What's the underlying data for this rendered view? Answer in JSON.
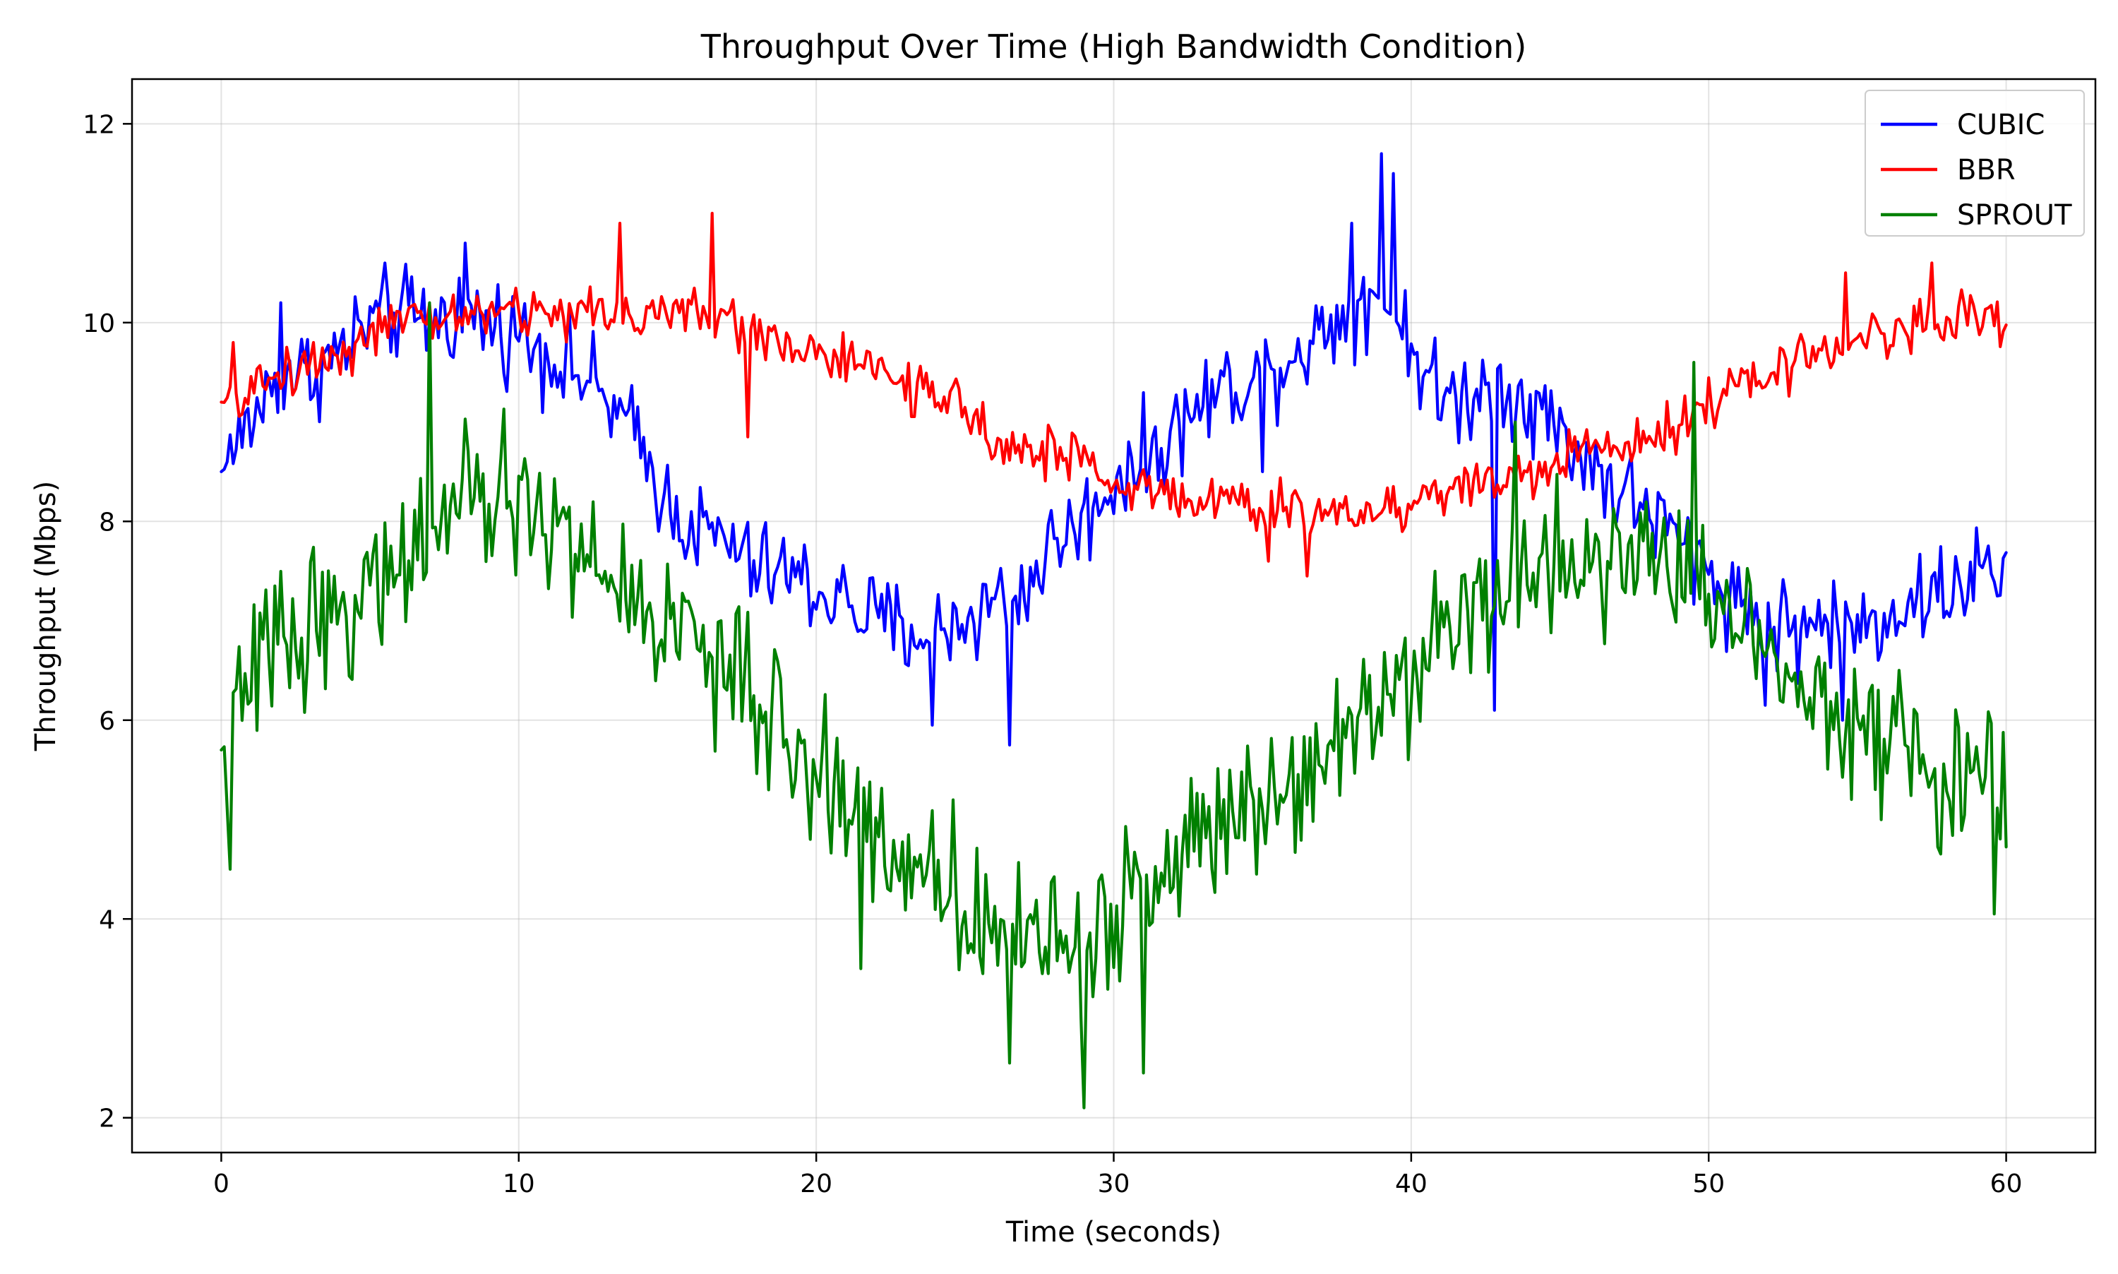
{
  "chart_data": {
    "type": "line",
    "title": "Throughput Over Time (High Bandwidth Condition)",
    "xlabel": "Time (seconds)",
    "ylabel": "Throughput (Mbps)",
    "xlim": [
      -3,
      63
    ],
    "ylim": [
      1.65,
      12.45
    ],
    "x_ticks": [
      0,
      10,
      20,
      30,
      40,
      50,
      60
    ],
    "y_ticks": [
      2,
      4,
      6,
      8,
      10,
      12
    ],
    "x_tick_labels": [
      "0",
      "10",
      "20",
      "30",
      "40",
      "50",
      "60"
    ],
    "y_tick_labels": [
      "2",
      "4",
      "6",
      "8",
      "10",
      "12"
    ],
    "grid": true,
    "legend": {
      "position": "top-right",
      "entries": [
        "CUBIC",
        "BBR",
        "SPROUT"
      ]
    },
    "sample_interval_s": 0.1,
    "series": [
      {
        "name": "CUBIC",
        "color": "#0000ff",
        "anchors": [
          [
            0,
            8.5
          ],
          [
            1,
            9.0
          ],
          [
            2,
            9.5
          ],
          [
            3,
            9.5
          ],
          [
            4,
            9.7
          ],
          [
            5,
            10.0
          ],
          [
            6,
            10.1
          ],
          [
            7,
            10.0
          ],
          [
            8,
            10.1
          ],
          [
            9,
            10.0
          ],
          [
            10,
            9.9
          ],
          [
            11,
            9.7
          ],
          [
            12,
            9.5
          ],
          [
            13,
            9.2
          ],
          [
            14,
            8.8
          ],
          [
            15,
            8.2
          ],
          [
            16,
            7.9
          ],
          [
            17,
            7.8
          ],
          [
            18,
            7.5
          ],
          [
            19,
            7.5
          ],
          [
            20,
            7.3
          ],
          [
            21,
            7.2
          ],
          [
            22,
            7.0
          ],
          [
            23,
            6.9
          ],
          [
            24,
            6.9
          ],
          [
            25,
            7.0
          ],
          [
            26,
            7.2
          ],
          [
            27,
            7.3
          ],
          [
            28,
            7.8
          ],
          [
            29,
            8.0
          ],
          [
            30,
            8.4
          ],
          [
            31,
            8.6
          ],
          [
            32,
            8.9
          ],
          [
            33,
            9.2
          ],
          [
            34,
            9.4
          ],
          [
            35,
            9.5
          ],
          [
            36,
            9.7
          ],
          [
            37,
            9.9
          ],
          [
            38,
            10.2
          ],
          [
            39,
            10.3
          ],
          [
            40,
            9.8
          ],
          [
            41,
            9.2
          ],
          [
            42,
            9.3
          ],
          [
            43,
            9.4
          ],
          [
            44,
            9.2
          ],
          [
            45,
            8.9
          ],
          [
            46,
            8.6
          ],
          [
            47,
            8.3
          ],
          [
            48,
            8.1
          ],
          [
            49,
            7.8
          ],
          [
            50,
            7.5
          ],
          [
            51,
            7.2
          ],
          [
            52,
            7.0
          ],
          [
            53,
            6.9
          ],
          [
            54,
            7.0
          ],
          [
            55,
            6.9
          ],
          [
            56,
            7.1
          ],
          [
            57,
            7.2
          ],
          [
            58,
            7.3
          ],
          [
            59,
            7.5
          ],
          [
            60,
            7.4
          ]
        ],
        "noise": 0.55,
        "spikes": [
          [
            39.0,
            11.7
          ],
          [
            39.4,
            11.5
          ],
          [
            38.0,
            11.0
          ],
          [
            8.2,
            10.8
          ],
          [
            5.5,
            10.6
          ],
          [
            42.8,
            6.1
          ],
          [
            35.0,
            8.5
          ],
          [
            30.5,
            8.8
          ],
          [
            26.5,
            5.75
          ],
          [
            23.9,
            5.95
          ],
          [
            2.0,
            10.2
          ],
          [
            51.9,
            6.15
          ],
          [
            54.5,
            6.0
          ],
          [
            0.2,
            8.6
          ]
        ]
      },
      {
        "name": "BBR",
        "color": "#ff0000",
        "anchors": [
          [
            0,
            9.2
          ],
          [
            1,
            9.3
          ],
          [
            2,
            9.5
          ],
          [
            3,
            9.6
          ],
          [
            4,
            9.7
          ],
          [
            5,
            9.9
          ],
          [
            6,
            10.0
          ],
          [
            7,
            10.0
          ],
          [
            8,
            10.1
          ],
          [
            9,
            10.1
          ],
          [
            10,
            10.1
          ],
          [
            11,
            10.1
          ],
          [
            12,
            10.1
          ],
          [
            13,
            10.1
          ],
          [
            14,
            10.1
          ],
          [
            15,
            10.1
          ],
          [
            16,
            10.1
          ],
          [
            17,
            10.0
          ],
          [
            18,
            9.9
          ],
          [
            19,
            9.8
          ],
          [
            20,
            9.7
          ],
          [
            21,
            9.6
          ],
          [
            22,
            9.5
          ],
          [
            23,
            9.4
          ],
          [
            24,
            9.2
          ],
          [
            25,
            9.1
          ],
          [
            26,
            8.9
          ],
          [
            27,
            8.7
          ],
          [
            28,
            8.7
          ],
          [
            29,
            8.6
          ],
          [
            30,
            8.4
          ],
          [
            31,
            8.3
          ],
          [
            32,
            8.3
          ],
          [
            33,
            8.2
          ],
          [
            34,
            8.2
          ],
          [
            35,
            8.1
          ],
          [
            36,
            8.1
          ],
          [
            37,
            8.1
          ],
          [
            38,
            8.1
          ],
          [
            39,
            8.1
          ],
          [
            40,
            8.2
          ],
          [
            41,
            8.3
          ],
          [
            42,
            8.4
          ],
          [
            43,
            8.4
          ],
          [
            44,
            8.5
          ],
          [
            45,
            8.6
          ],
          [
            46,
            8.7
          ],
          [
            47,
            8.8
          ],
          [
            48,
            8.9
          ],
          [
            49,
            9.0
          ],
          [
            50,
            9.2
          ],
          [
            51,
            9.3
          ],
          [
            52,
            9.5
          ],
          [
            53,
            9.6
          ],
          [
            54,
            9.8
          ],
          [
            55,
            9.8
          ],
          [
            56,
            9.9
          ],
          [
            57,
            10.0
          ],
          [
            58,
            10.0
          ],
          [
            59,
            10.1
          ],
          [
            60,
            10.0
          ]
        ],
        "noise": 0.3,
        "spikes": [
          [
            16.5,
            11.1
          ],
          [
            13.4,
            11.0
          ],
          [
            17.7,
            8.85
          ],
          [
            54.6,
            10.5
          ],
          [
            57.5,
            10.6
          ],
          [
            36.5,
            7.45
          ],
          [
            35.2,
            7.6
          ],
          [
            0.4,
            9.8
          ]
        ]
      },
      {
        "name": "SPROUT",
        "color": "#008000",
        "anchors": [
          [
            0,
            5.7
          ],
          [
            1,
            6.4
          ],
          [
            2,
            6.9
          ],
          [
            3,
            7.0
          ],
          [
            4,
            7.1
          ],
          [
            5,
            7.3
          ],
          [
            6,
            7.6
          ],
          [
            7,
            7.9
          ],
          [
            8,
            8.1
          ],
          [
            9,
            8.2
          ],
          [
            10,
            8.2
          ],
          [
            11,
            8.0
          ],
          [
            12,
            7.7
          ],
          [
            13,
            7.4
          ],
          [
            14,
            7.2
          ],
          [
            15,
            7.0
          ],
          [
            16,
            6.8
          ],
          [
            17,
            6.5
          ],
          [
            18,
            6.1
          ],
          [
            19,
            5.8
          ],
          [
            20,
            5.5
          ],
          [
            21,
            5.2
          ],
          [
            22,
            4.9
          ],
          [
            23,
            4.6
          ],
          [
            24,
            4.4
          ],
          [
            25,
            4.2
          ],
          [
            26,
            4.0
          ],
          [
            27,
            3.9
          ],
          [
            28,
            3.8
          ],
          [
            29,
            3.8
          ],
          [
            30,
            4.0
          ],
          [
            31,
            4.3
          ],
          [
            32,
            4.6
          ],
          [
            33,
            4.9
          ],
          [
            34,
            5.1
          ],
          [
            35,
            5.3
          ],
          [
            36,
            5.5
          ],
          [
            37,
            5.7
          ],
          [
            38,
            6.0
          ],
          [
            39,
            6.3
          ],
          [
            40,
            6.6
          ],
          [
            41,
            6.9
          ],
          [
            42,
            7.1
          ],
          [
            43,
            7.3
          ],
          [
            44,
            7.5
          ],
          [
            45,
            7.6
          ],
          [
            46,
            7.7
          ],
          [
            47,
            7.7
          ],
          [
            48,
            7.6
          ],
          [
            49,
            7.5
          ],
          [
            50,
            7.3
          ],
          [
            51,
            7.0
          ],
          [
            52,
            6.8
          ],
          [
            53,
            6.5
          ],
          [
            54,
            6.2
          ],
          [
            55,
            6.0
          ],
          [
            56,
            5.8
          ],
          [
            57,
            5.6
          ],
          [
            58,
            5.4
          ],
          [
            59,
            5.3
          ],
          [
            60,
            5.3
          ]
        ],
        "noise": 0.85,
        "spikes": [
          [
            29.0,
            2.1
          ],
          [
            31.0,
            2.45
          ],
          [
            26.5,
            2.55
          ],
          [
            7.0,
            10.2
          ],
          [
            0.3,
            4.5
          ],
          [
            49.5,
            9.6
          ],
          [
            43.5,
            9.0
          ],
          [
            59.6,
            4.05
          ],
          [
            28.9,
            3.0
          ],
          [
            21.5,
            3.5
          ]
        ]
      }
    ]
  }
}
